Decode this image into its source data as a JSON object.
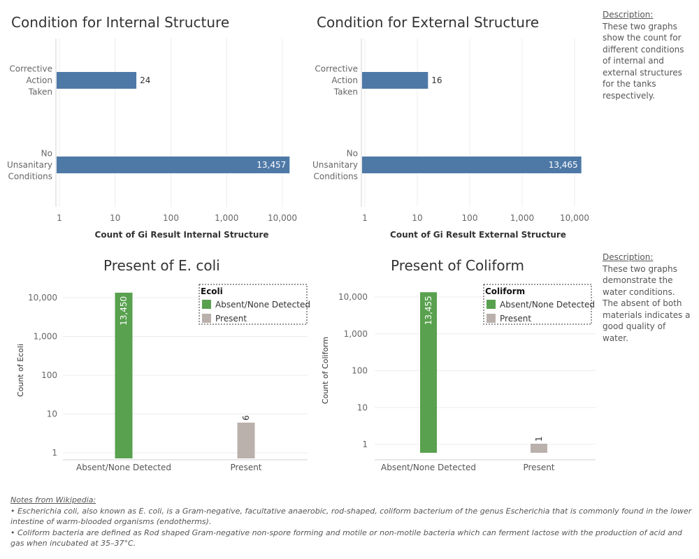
{
  "top_left": {
    "title": "Condition for Internal Structure"
  },
  "top_right": {
    "title": "Condition for External Structure"
  },
  "bottom_left": {
    "title": "Present of E. coli"
  },
  "bottom_right": {
    "title": "Present of Coliform"
  },
  "description_top": {
    "heading": "Description:",
    "text": "These two graphs show the count for different conditions of internal and external structures for the tanks respectively."
  },
  "description_bottom": {
    "heading": "Description:",
    "text": "These two graphs demonstrate the water conditions. The absent of both materials indicates a good quality of water."
  },
  "notes": {
    "heading": "Notes from Wikipedia:",
    "items": [
      "• Escherichia coli, also known as E. coli, is a Gram-negative, facultative anaerobic, rod-shaped, coliform bacterium of the genus Escherichia that is commonly found in the lower intestine of warm-blooded organisms (endotherms).",
      "• Coliform bacteria are defined as Rod shaped Gram-negative non-spore forming and motile or non-motile bacteria which can ferment lactose with the production of acid and gas when incubated at 35–37°C."
    ]
  },
  "colors": {
    "blue": "#4e79a7",
    "green": "#59a14f",
    "gray": "#bab0ac"
  },
  "chart_data": [
    {
      "type": "bar",
      "orientation": "horizontal",
      "title": "Condition for Internal Structure",
      "categories": [
        [
          "Corrective",
          "Action",
          "Taken"
        ],
        [
          "No",
          "Unsanitary",
          "Conditions"
        ]
      ],
      "values": [
        24,
        13457
      ],
      "value_labels": [
        "24",
        "13,457"
      ],
      "xlabel": "Count of Gi Result Internal Structure",
      "scale": "log",
      "xticks": [
        "1",
        "10",
        "100",
        "1,000",
        "10,000"
      ],
      "grid": true
    },
    {
      "type": "bar",
      "orientation": "horizontal",
      "title": "Condition for External Structure",
      "categories": [
        [
          "Corrective",
          "Action",
          "Taken"
        ],
        [
          "No",
          "Unsanitary",
          "Conditions"
        ]
      ],
      "values": [
        16,
        13465
      ],
      "value_labels": [
        "16",
        "13,465"
      ],
      "xlabel": "Count of Gi Result External Structure",
      "scale": "log",
      "xticks": [
        "1",
        "10",
        "100",
        "1,000",
        "10,000"
      ],
      "grid": true
    },
    {
      "type": "bar",
      "orientation": "vertical",
      "title": "Present of E. coli",
      "categories": [
        "Absent/None Detected",
        "Present"
      ],
      "values": [
        13450,
        6
      ],
      "value_labels": [
        "13,450",
        "6"
      ],
      "ylabel": "Count of Ecoli",
      "scale": "log",
      "yticks": [
        "1",
        "10",
        "100",
        "1,000",
        "10,000"
      ],
      "legend": {
        "title": "Ecoli",
        "placement": "top-right",
        "items": [
          "Absent/None Detected",
          "Present"
        ]
      },
      "grid": true
    },
    {
      "type": "bar",
      "orientation": "vertical",
      "title": "Present of Coliform",
      "categories": [
        "Absent/None Detected",
        "Present"
      ],
      "values": [
        13455,
        1
      ],
      "value_labels": [
        "13,455",
        "1"
      ],
      "ylabel": "Count of Coliform",
      "scale": "log",
      "yticks": [
        "1",
        "10",
        "100",
        "1,000",
        "10,000"
      ],
      "legend": {
        "title": "Coliform",
        "placement": "top-right",
        "items": [
          "Absent/None Detected",
          "Present"
        ]
      },
      "grid": true
    }
  ]
}
